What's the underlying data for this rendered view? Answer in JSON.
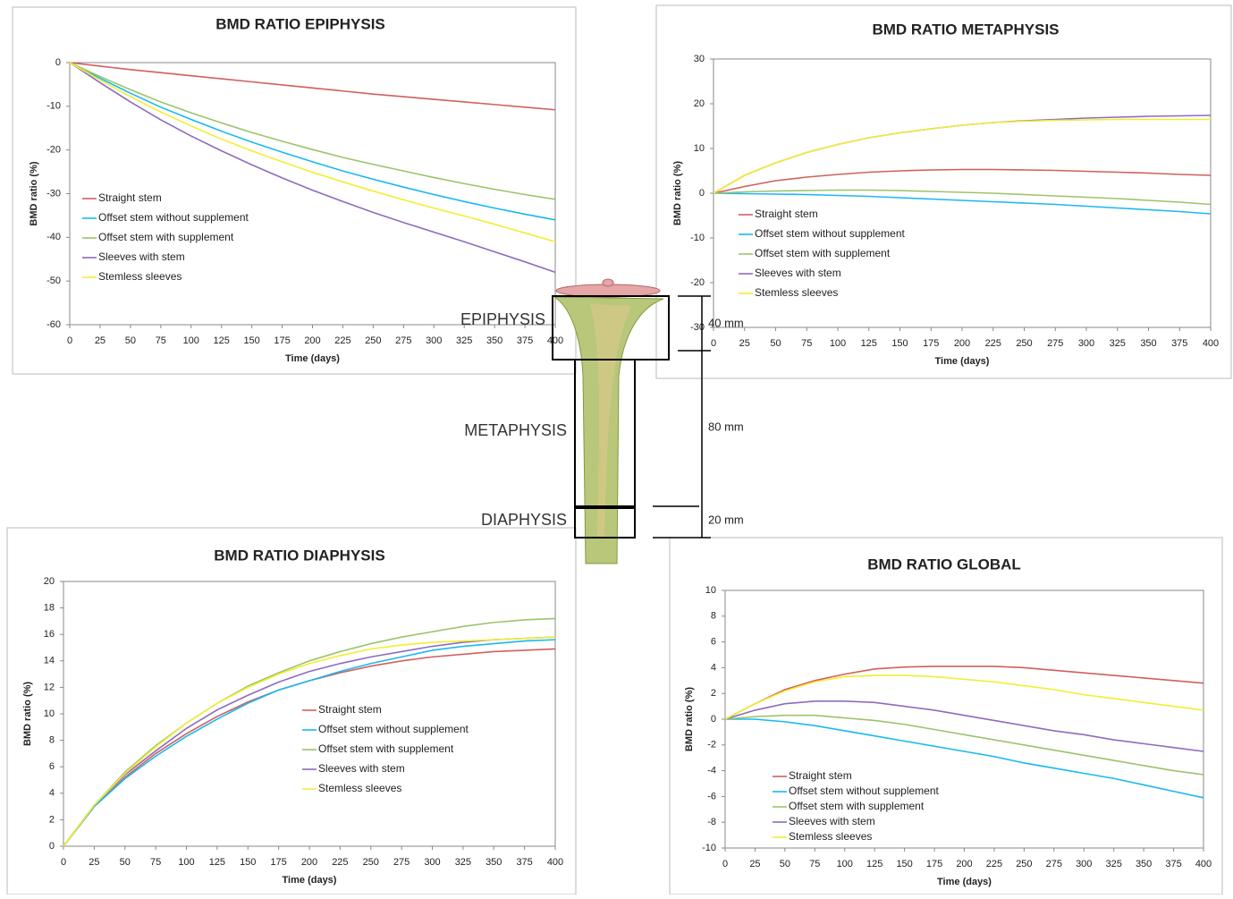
{
  "chart_data": [
    {
      "type": "line",
      "title": "BMD RATIO EPIPHYSIS",
      "x_label": "Time (days)",
      "y_label": "BMD ratio (%)",
      "grid": false,
      "x": [
        0,
        25,
        50,
        75,
        100,
        125,
        150,
        175,
        200,
        225,
        250,
        275,
        300,
        325,
        350,
        375,
        400
      ],
      "xlim": [
        0,
        400
      ],
      "xticks": [
        0,
        25,
        50,
        75,
        100,
        125,
        150,
        175,
        200,
        225,
        250,
        275,
        300,
        325,
        350,
        375,
        400
      ],
      "ylim": [
        -60,
        0
      ],
      "yticks": [
        0,
        -10,
        -20,
        -30,
        -40,
        -50,
        -60
      ],
      "series": [
        {
          "name": "Straight stem",
          "color": "#d0605e",
          "values": [
            0,
            -0.8,
            -1.6,
            -2.3,
            -3.0,
            -3.7,
            -4.4,
            -5.1,
            -5.8,
            -6.5,
            -7.2,
            -7.8,
            -8.4,
            -9.0,
            -9.6,
            -10.2,
            -10.8
          ]
        },
        {
          "name": "Offset stem without supplement",
          "color": "#1ab8f0",
          "values": [
            0,
            -3.6,
            -7.0,
            -10.2,
            -13.0,
            -15.7,
            -18.2,
            -20.5,
            -22.7,
            -24.8,
            -26.7,
            -28.5,
            -30.2,
            -31.8,
            -33.3,
            -34.7,
            -36.0
          ]
        },
        {
          "name": "Offset stem with supplement",
          "color": "#9bc46a",
          "values": [
            0,
            -3.2,
            -6.2,
            -9.0,
            -11.5,
            -13.8,
            -16.0,
            -18.0,
            -19.9,
            -21.7,
            -23.3,
            -24.8,
            -26.3,
            -27.7,
            -29.0,
            -30.2,
            -31.3
          ]
        },
        {
          "name": "Sleeves with stem",
          "color": "#8e6bbf",
          "values": [
            0,
            -4.6,
            -9.0,
            -13.1,
            -16.8,
            -20.2,
            -23.4,
            -26.4,
            -29.2,
            -31.8,
            -34.3,
            -36.6,
            -38.8,
            -41.0,
            -43.3,
            -45.6,
            -48.0
          ]
        },
        {
          "name": "Stemless sleeves",
          "color": "#f2ee30",
          "values": [
            0,
            -4.0,
            -7.8,
            -11.3,
            -14.5,
            -17.5,
            -20.2,
            -22.7,
            -25.1,
            -27.3,
            -29.4,
            -31.4,
            -33.3,
            -35.1,
            -37.0,
            -39.0,
            -41.0
          ]
        }
      ]
    },
    {
      "type": "line",
      "title": "BMD RATIO METAPHYSIS",
      "x_label": "Time (days)",
      "y_label": "BMD ratio (%)",
      "grid": false,
      "x": [
        0,
        25,
        50,
        75,
        100,
        125,
        150,
        175,
        200,
        225,
        250,
        275,
        300,
        325,
        350,
        375,
        400
      ],
      "xlim": [
        0,
        400
      ],
      "xticks": [
        0,
        25,
        50,
        75,
        100,
        125,
        150,
        175,
        200,
        225,
        250,
        275,
        300,
        325,
        350,
        375,
        400
      ],
      "ylim": [
        -30,
        30
      ],
      "yticks": [
        30,
        20,
        10,
        0,
        -10,
        -20,
        -30
      ],
      "series": [
        {
          "name": "Straight stem",
          "color": "#d0605e",
          "values": [
            0,
            1.5,
            2.8,
            3.6,
            4.2,
            4.7,
            5.0,
            5.2,
            5.3,
            5.3,
            5.2,
            5.1,
            4.9,
            4.7,
            4.5,
            4.2,
            4.0
          ]
        },
        {
          "name": "Offset stem without supplement",
          "color": "#1ab8f0",
          "values": [
            0,
            -0.1,
            -0.2,
            -0.3,
            -0.5,
            -0.7,
            -1.0,
            -1.3,
            -1.6,
            -1.9,
            -2.2,
            -2.5,
            -2.9,
            -3.3,
            -3.7,
            -4.1,
            -4.6
          ]
        },
        {
          "name": "Offset stem with supplement",
          "color": "#9bc46a",
          "values": [
            0,
            0.3,
            0.5,
            0.6,
            0.7,
            0.7,
            0.6,
            0.4,
            0.2,
            0,
            -0.3,
            -0.6,
            -0.9,
            -1.2,
            -1.6,
            -2.0,
            -2.5
          ]
        },
        {
          "name": "Sleeves with stem",
          "color": "#8e6bbf",
          "values": [
            0,
            4,
            6.8,
            9.1,
            10.9,
            12.4,
            13.5,
            14.4,
            15.2,
            15.8,
            16.2,
            16.5,
            16.8,
            17.0,
            17.2,
            17.3,
            17.4
          ]
        },
        {
          "name": "Stemless sleeves",
          "color": "#f2ee30",
          "values": [
            0,
            4,
            6.8,
            9.1,
            10.9,
            12.4,
            13.5,
            14.4,
            15.2,
            15.8,
            16.1,
            16.3,
            16.4,
            16.5,
            16.5,
            16.5,
            16.5
          ]
        }
      ]
    },
    {
      "type": "line",
      "title": "BMD RATIO DIAPHYSIS",
      "x_label": "Time (days)",
      "y_label": "BMD ratio (%)",
      "grid": false,
      "x": [
        0,
        25,
        50,
        75,
        100,
        125,
        150,
        175,
        200,
        225,
        250,
        275,
        300,
        325,
        350,
        375,
        400
      ],
      "xlim": [
        0,
        400
      ],
      "xticks": [
        0,
        25,
        50,
        75,
        100,
        125,
        150,
        175,
        200,
        225,
        250,
        275,
        300,
        325,
        350,
        375,
        400
      ],
      "ylim": [
        0,
        20
      ],
      "yticks": [
        20,
        18,
        16,
        14,
        12,
        10,
        8,
        6,
        4,
        2,
        0
      ],
      "series": [
        {
          "name": "Straight stem",
          "color": "#d0605e",
          "values": [
            0,
            3.0,
            5.2,
            7.0,
            8.5,
            9.8,
            10.9,
            11.8,
            12.5,
            13.1,
            13.6,
            14.0,
            14.3,
            14.5,
            14.7,
            14.8,
            14.9
          ]
        },
        {
          "name": "Offset stem without supplement",
          "color": "#1ab8f0",
          "values": [
            0,
            3.0,
            5.1,
            6.8,
            8.3,
            9.6,
            10.8,
            11.8,
            12.5,
            13.2,
            13.8,
            14.3,
            14.8,
            15.1,
            15.3,
            15.5,
            15.6
          ]
        },
        {
          "name": "Offset stem with supplement",
          "color": "#9bc46a",
          "values": [
            0,
            3.1,
            5.6,
            7.6,
            9.3,
            10.8,
            12.1,
            13.1,
            14.0,
            14.7,
            15.3,
            15.8,
            16.2,
            16.6,
            16.9,
            17.1,
            17.2
          ]
        },
        {
          "name": "Sleeves with stem",
          "color": "#8e6bbf",
          "values": [
            0,
            3.1,
            5.4,
            7.2,
            8.9,
            10.3,
            11.4,
            12.4,
            13.2,
            13.8,
            14.3,
            14.7,
            15.1,
            15.4,
            15.6,
            15.7,
            15.8
          ]
        },
        {
          "name": "Stemless sleeves",
          "color": "#f2ee30",
          "values": [
            0,
            3.1,
            5.5,
            7.5,
            9.3,
            10.8,
            12.0,
            13.0,
            13.8,
            14.4,
            14.9,
            15.2,
            15.4,
            15.5,
            15.6,
            15.7,
            15.8
          ]
        }
      ]
    },
    {
      "type": "line",
      "title": "BMD RATIO GLOBAL",
      "x_label": "Time (days)",
      "y_label": "BMD ratio (%)",
      "grid": false,
      "x": [
        0,
        25,
        50,
        75,
        100,
        125,
        150,
        175,
        200,
        225,
        250,
        275,
        300,
        325,
        350,
        375,
        400
      ],
      "xlim": [
        0,
        400
      ],
      "xticks": [
        0,
        25,
        50,
        75,
        100,
        125,
        150,
        175,
        200,
        225,
        250,
        275,
        300,
        325,
        350,
        375,
        400
      ],
      "ylim": [
        -10,
        10
      ],
      "yticks": [
        10,
        8,
        6,
        4,
        2,
        0,
        -2,
        -4,
        -6,
        -8,
        -10
      ],
      "series": [
        {
          "name": "Straight stem",
          "color": "#d0605e",
          "values": [
            0,
            1.2,
            2.3,
            3.0,
            3.5,
            3.9,
            4.05,
            4.1,
            4.1,
            4.1,
            4.0,
            3.8,
            3.6,
            3.4,
            3.2,
            3.0,
            2.8
          ]
        },
        {
          "name": "Offset stem without supplement",
          "color": "#1ab8f0",
          "values": [
            0,
            0,
            -0.2,
            -0.5,
            -0.9,
            -1.3,
            -1.7,
            -2.1,
            -2.5,
            -2.9,
            -3.4,
            -3.8,
            -4.2,
            -4.6,
            -5.1,
            -5.6,
            -6.1
          ]
        },
        {
          "name": "Offset stem with supplement",
          "color": "#9bc46a",
          "values": [
            0,
            0.2,
            0.3,
            0.3,
            0.1,
            -0.1,
            -0.4,
            -0.8,
            -1.2,
            -1.6,
            -2.0,
            -2.4,
            -2.8,
            -3.2,
            -3.6,
            -4.0,
            -4.3
          ]
        },
        {
          "name": "Sleeves with stem",
          "color": "#8e6bbf",
          "values": [
            0,
            0.7,
            1.2,
            1.4,
            1.4,
            1.3,
            1.0,
            0.7,
            0.3,
            -0.1,
            -0.5,
            -0.9,
            -1.2,
            -1.6,
            -1.9,
            -2.2,
            -2.5
          ]
        },
        {
          "name": "Stemless sleeves",
          "color": "#f2ee30",
          "values": [
            0,
            1.2,
            2.2,
            2.9,
            3.3,
            3.4,
            3.4,
            3.3,
            3.1,
            2.9,
            2.6,
            2.3,
            1.9,
            1.6,
            1.3,
            1.0,
            0.7
          ]
        }
      ]
    }
  ],
  "diagram": {
    "regions": [
      "EPIPHYSIS",
      "METAPHYSIS",
      "DIAPHYSIS"
    ],
    "lengths": [
      "40 mm",
      "80 mm",
      "20 mm"
    ]
  }
}
